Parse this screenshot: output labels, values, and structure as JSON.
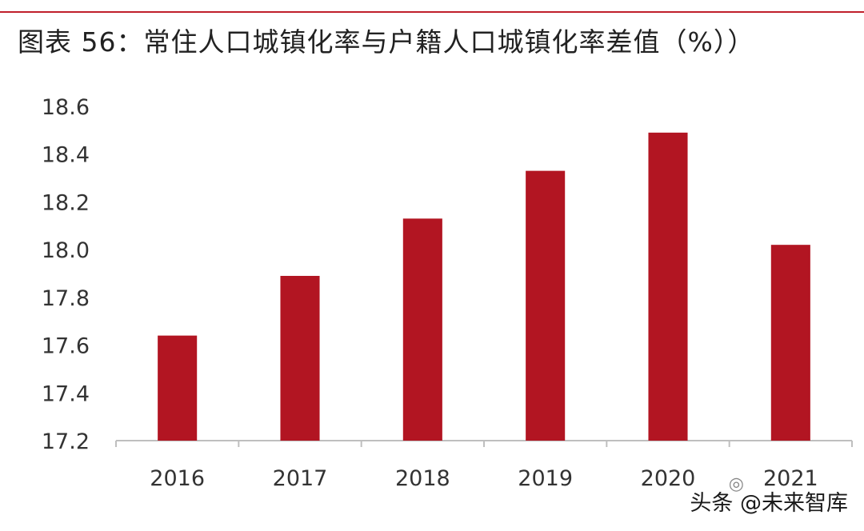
{
  "title": "图表 56：常住人口城镇化率与户籍人口城镇化率差值（%））",
  "watermark": "头条 @未来智库",
  "colors": {
    "bar": "#b21522",
    "rule": "#c0202b",
    "axis": "#bfbfbf"
  },
  "chart_data": {
    "type": "bar",
    "categories": [
      "2016",
      "2017",
      "2018",
      "2019",
      "2020",
      "2021"
    ],
    "values": [
      17.64,
      17.89,
      18.13,
      18.33,
      18.49,
      18.02
    ],
    "ylim": [
      17.2,
      18.6
    ],
    "yticks": [
      "17.2",
      "17.4",
      "17.6",
      "17.8",
      "18.0",
      "18.2",
      "18.4",
      "18.6"
    ],
    "grid": false,
    "legend": "none"
  }
}
